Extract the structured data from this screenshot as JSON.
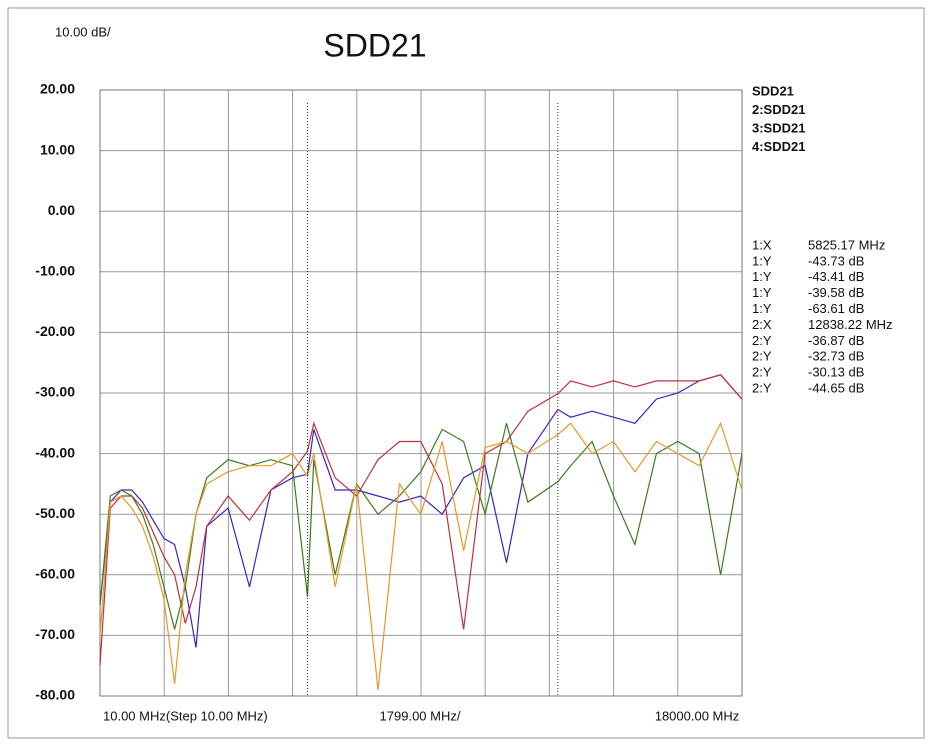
{
  "chart_data": {
    "type": "line",
    "title": "SDD21",
    "scale_label": "10.00 dB/",
    "x_labels": [
      "10.00 MHz(Step 10.00 MHz)",
      "1799.00 MHz/",
      "18000.00 MHz"
    ],
    "x": [
      10,
      300,
      600,
      900,
      1200,
      1500,
      1800,
      2100,
      2400,
      2700,
      3000,
      3600,
      4200,
      4800,
      5400,
      5825.17,
      6000,
      6600,
      7200,
      7800,
      8400,
      9000,
      9600,
      10200,
      10800,
      11400,
      12000,
      12838.22,
      13200,
      13800,
      14400,
      15000,
      15600,
      16200,
      16800,
      17400,
      18000
    ],
    "xlim": [
      10,
      18000
    ],
    "ylim": [
      -80,
      20
    ],
    "yticks": [
      {
        "value": 20,
        "label": "20.00"
      },
      {
        "value": 10,
        "label": "10.00"
      },
      {
        "value": 0,
        "label": "0.00"
      },
      {
        "value": -10,
        "label": "-10.00"
      },
      {
        "value": -20,
        "label": "-20.00"
      },
      {
        "value": -30,
        "label": "-30.00"
      },
      {
        "value": -40,
        "label": "-40.00"
      },
      {
        "value": -50,
        "label": "-50.00"
      },
      {
        "value": -60,
        "label": "-60.00"
      },
      {
        "value": -70,
        "label": "-70.00"
      },
      {
        "value": -80,
        "label": "-80.00"
      }
    ],
    "grid": true,
    "series": [
      {
        "name": "SDD21",
        "color": "#3c22c8",
        "label_color": "#5a2fc0",
        "values": [
          -65,
          -48,
          -46,
          -46,
          -48,
          -51,
          -54,
          -55,
          -62,
          -72,
          -52,
          -49,
          -62,
          -46,
          -44,
          -43.41,
          -36,
          -46,
          -46,
          -47,
          -48,
          -47,
          -50,
          -44,
          -42,
          -58,
          -40,
          -32.73,
          -34,
          -33,
          -34,
          -35,
          -31,
          -30,
          -28,
          -27,
          -31
        ]
      },
      {
        "name": "2:SDD21",
        "color": "#c0303a",
        "label_color": "#c8302c",
        "values": [
          -75,
          -49,
          -47,
          -47,
          -49,
          -53,
          -57,
          -60,
          -68,
          -62,
          -52,
          -47,
          -51,
          -46,
          -43,
          -39.58,
          -35,
          -44,
          -47,
          -41,
          -38,
          -38,
          -45,
          -69,
          -40,
          -38,
          -33,
          -30.13,
          -28,
          -29,
          -28,
          -29,
          -28,
          -28,
          -28,
          -27,
          -31
        ]
      },
      {
        "name": "3:SDD21",
        "color": "#3a7d1e",
        "label_color": "#4a7a20",
        "values": [
          -65,
          -47,
          -46,
          -47,
          -50,
          -55,
          -62,
          -69,
          -62,
          -50,
          -44,
          -41,
          -42,
          -41,
          -42,
          -63.61,
          -41,
          -60,
          -45,
          -50,
          -47,
          -43,
          -36,
          -38,
          -50,
          -35,
          -48,
          -44.65,
          -42,
          -38,
          -47,
          -55,
          -40,
          -38,
          -40,
          -60,
          -40
        ]
      },
      {
        "name": "4:SDD21",
        "color": "#e8982a",
        "label_color": "#e89020",
        "values": [
          -70,
          -48,
          -47,
          -49,
          -52,
          -57,
          -64,
          -78,
          -60,
          -50,
          -45,
          -43,
          -42,
          -42,
          -40,
          -43.73,
          -40,
          -62,
          -45,
          -79,
          -45,
          -50,
          -38,
          -56,
          -39,
          -38,
          -40,
          -36.87,
          -35,
          -40,
          -38,
          -43,
          -38,
          -40,
          -42,
          -35,
          -46
        ]
      }
    ],
    "markers": [
      {
        "name": "1:X",
        "x": 5825.17,
        "label": "5825.17 MHz",
        "readouts": [
          {
            "name": "1:Y",
            "label": "-43.73 dB",
            "color": "#e89020"
          },
          {
            "name": "1:Y",
            "label": "-43.41 dB",
            "color": "#5a2fc0"
          },
          {
            "name": "1:Y",
            "label": "-39.58 dB",
            "color": "#c8302c"
          },
          {
            "name": "1:Y",
            "label": "-63.61 dB",
            "color": "#4a7a20"
          }
        ]
      },
      {
        "name": "2:X",
        "x": 12838.22,
        "label": "12838.22 MHz",
        "readouts": [
          {
            "name": "2:Y",
            "label": "-36.87 dB",
            "color": "#e89020"
          },
          {
            "name": "2:Y",
            "label": "-32.73 dB",
            "color": "#5a2fc0"
          },
          {
            "name": "2:Y",
            "label": "-30.13 dB",
            "color": "#c8302c"
          },
          {
            "name": "2:Y",
            "label": "-44.65 dB",
            "color": "#4a7a20"
          }
        ]
      }
    ],
    "marker_color": "#b07080"
  }
}
